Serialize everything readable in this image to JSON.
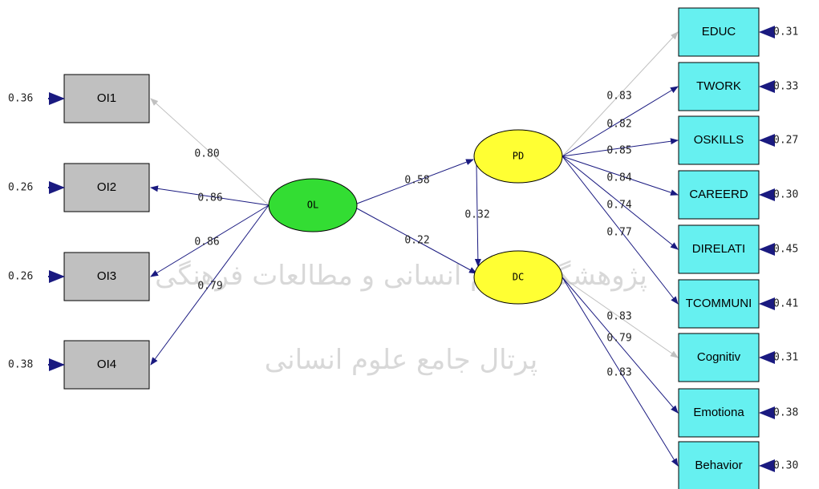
{
  "latent": [
    "OL",
    "PD",
    "DC"
  ],
  "structural": [
    "0.58",
    "0.22",
    "0.32"
  ],
  "indicators": [
    {
      "name": "OI1",
      "loading": "0.80",
      "error": "0.36"
    },
    {
      "name": "OI2",
      "loading": "0.86",
      "error": "0.26"
    },
    {
      "name": "OI3",
      "loading": "0.86",
      "error": "0.26"
    },
    {
      "name": "OI4",
      "loading": "0.79",
      "error": "0.38"
    },
    {
      "name": "EDUC",
      "loading": "0.83",
      "error": "0.31"
    },
    {
      "name": "TWORK",
      "loading": "0.82",
      "error": "0.33"
    },
    {
      "name": "OSKILLS",
      "loading": "0.85",
      "error": "0.27"
    },
    {
      "name": "CAREERD",
      "loading": "0.84",
      "error": "0.30"
    },
    {
      "name": "DIRELATI",
      "loading": "0.74",
      "error": "0.45"
    },
    {
      "name": "TCOMMUNI",
      "loading": "0.77",
      "error": "0.41"
    },
    {
      "name": "Cognitiv",
      "loading": "0.83",
      "error": "0.31"
    },
    {
      "name": "Emotiona",
      "loading": "0.79",
      "error": "0.38"
    },
    {
      "name": "Behavior",
      "loading": "0.83",
      "error": "0.30"
    }
  ],
  "watermark": [
    "پژوهشگاه علوم انسانی و مطالعات فرهنگی",
    "پرتال جامع علوم انسانی"
  ]
}
